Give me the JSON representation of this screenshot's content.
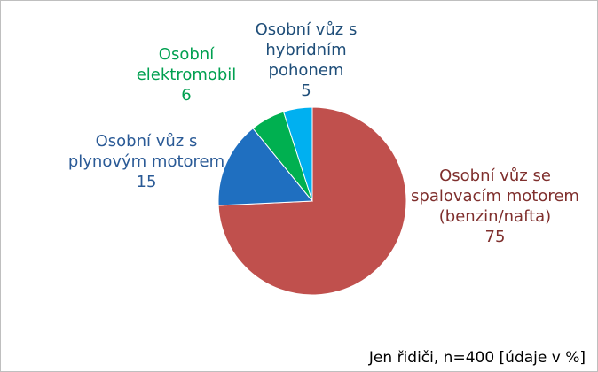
{
  "chart_data": {
    "type": "pie",
    "slices": [
      {
        "lines": [
          "Osobní vůz se",
          "spalovacím motorem",
          "(benzin/nafta)"
        ],
        "value": 75,
        "value_label": "75",
        "color": "#c0504d",
        "label_color": "#7f2f2d"
      },
      {
        "lines": [
          "Osobní vůz s",
          "plynovým motorem"
        ],
        "value": 15,
        "value_label": "15",
        "color": "#1f6fc0",
        "label_color": "#2a5a96"
      },
      {
        "lines": [
          "Osobní",
          "elektromobil"
        ],
        "value": 6,
        "value_label": "6",
        "color": "#00b050",
        "label_color": "#00a050"
      },
      {
        "lines": [
          "Osobní vůz s",
          "hybridním",
          "pohonem"
        ],
        "value": 5,
        "value_label": "5",
        "color": "#00b0f0",
        "label_color": "#1f4e79"
      }
    ],
    "note": "Jen řidiči, n=400 [údaje v %]"
  }
}
